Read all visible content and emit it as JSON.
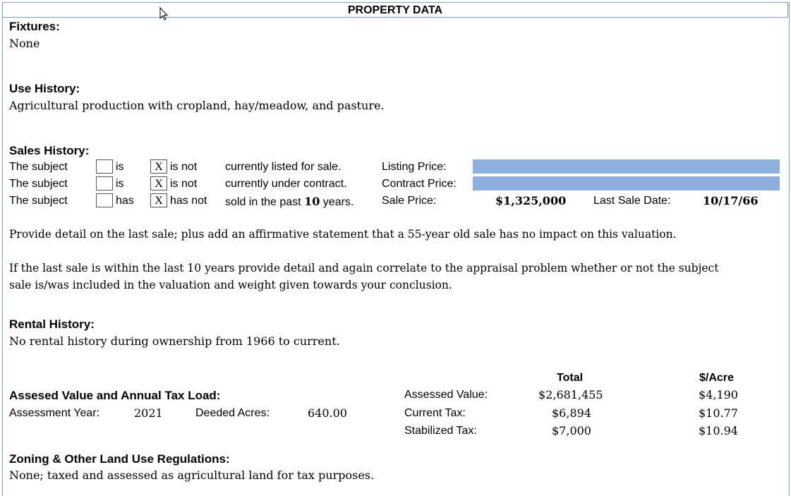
{
  "title": "PROPERTY DATA",
  "fixtures": {
    "label": "Fixtures:",
    "text": "None"
  },
  "use_history": {
    "label": "Use History:",
    "text": "Agricultural production with cropland, hay/meadow, and pasture."
  },
  "sales_history": {
    "label": "Sales History:",
    "rows": [
      {
        "subject": "The subject",
        "opt1": "is",
        "opt1_mark": "",
        "opt2": "is not",
        "opt2_mark": "X",
        "desc": "currently listed for sale.",
        "field_label": "Listing Price:"
      },
      {
        "subject": "The subject",
        "opt1": "is",
        "opt1_mark": "",
        "opt2": "is not",
        "opt2_mark": "X",
        "desc": "currently under contract.",
        "field_label": "Contract Price:"
      },
      {
        "subject": "The subject",
        "opt1": "has",
        "opt1_mark": "",
        "opt2": "has not",
        "opt2_mark": "X",
        "desc_pre": "sold in the past",
        "desc_years": "10",
        "desc_post": "years.",
        "field_label": "Sale Price:"
      }
    ],
    "sale_price": "$1,325,000",
    "last_sale_label": "Last Sale Date:",
    "last_sale_date": "10/17/66",
    "note1": "Provide detail on the last sale; plus add an affirmative statement that a 55-year old sale has no impact on this valuation.",
    "note2a": "If the last sale is within the last 10 years provide detail and again correlate to the appraisal problem whether or not the subject",
    "note2b": "sale is/was included in the valuation and weight given towards your conclusion."
  },
  "rental_history": {
    "label": "Rental History:",
    "text": "No rental history during ownership from 1966 to current."
  },
  "assessment": {
    "label": "Assesed Value and Annual Tax Load:",
    "year_label": "Assessment Year:",
    "year": "2021",
    "acres_label": "Deeded Acres:",
    "acres": "640.00",
    "col_total": "Total",
    "col_acre": "$/Acre",
    "rows": [
      {
        "label": "Assessed Value:",
        "total": "$2,681,455",
        "per_acre": "$4,190"
      },
      {
        "label": "Current Tax:",
        "total": "$6,894",
        "per_acre": "$10.77"
      },
      {
        "label": "Stabilized Tax:",
        "total": "$7,000",
        "per_acre": "$10.94"
      }
    ]
  },
  "zoning": {
    "label": "Zoning & Other Land Use Regulations:",
    "text": "None; taxed and assessed as agricultural land for tax purposes."
  }
}
